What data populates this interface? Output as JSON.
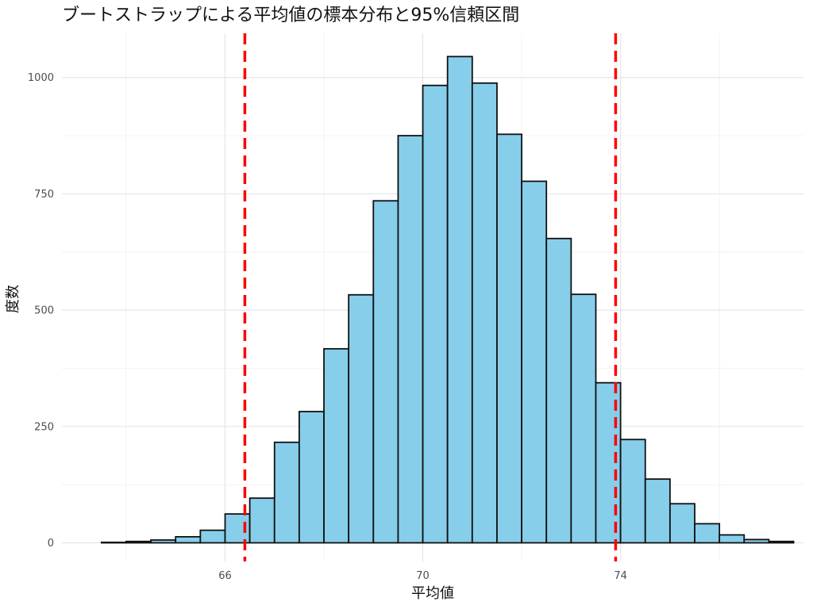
{
  "chart_data": {
    "type": "bar",
    "title": "ブートストラップによる平均値の標本分布と95%信頼区間",
    "xlabel": "平均値",
    "ylabel": "度数",
    "xlim": [
      62.7,
      77.7
    ],
    "ylim": [
      -40,
      1095
    ],
    "x_ticks": [
      66,
      70,
      74
    ],
    "x_tick_labels": [
      "66",
      "70",
      "74"
    ],
    "y_ticks": [
      0,
      250,
      500,
      750,
      1000
    ],
    "y_tick_labels": [
      "0",
      "250",
      "500",
      "750",
      "1000"
    ],
    "bin_width": 0.5,
    "bin_centers": [
      63.75,
      64.25,
      64.75,
      65.25,
      65.75,
      66.25,
      66.75,
      67.25,
      67.75,
      68.25,
      68.75,
      69.25,
      69.75,
      70.25,
      70.75,
      71.25,
      71.75,
      72.25,
      72.75,
      73.25,
      73.75,
      74.25,
      74.75,
      75.25,
      75.75,
      76.25,
      76.75,
      77.25
    ],
    "values": [
      1,
      3,
      6,
      13,
      27,
      62,
      96,
      216,
      282,
      417,
      533,
      735,
      875,
      983,
      1045,
      988,
      878,
      777,
      654,
      534,
      344,
      222,
      137,
      84,
      41,
      17,
      7,
      3
    ],
    "ci_lower": 66.4,
    "ci_upper": 73.9,
    "grid": true,
    "legend": "none",
    "colors": {
      "bar_fill": "#87CEEB",
      "bar_outline": "#111111",
      "ci_line": "#FF0000"
    }
  }
}
